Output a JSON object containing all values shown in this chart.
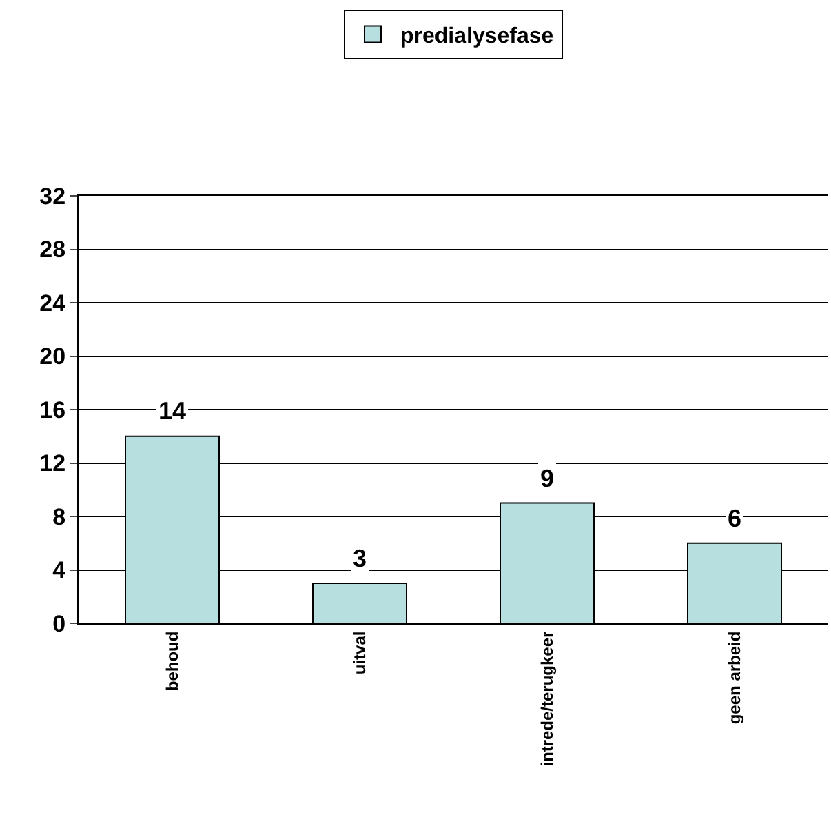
{
  "chart_data": {
    "type": "bar",
    "categories": [
      "behoud",
      "uitval",
      "intrede/terugkeer",
      "geen arbeid"
    ],
    "series": [
      {
        "name": "predialysefase",
        "color": "#b7dfe0",
        "values": [
          14,
          3,
          9,
          6
        ]
      }
    ],
    "ylim": [
      0,
      32
    ],
    "yticks": [
      0,
      4,
      8,
      12,
      16,
      20,
      24,
      28,
      32
    ],
    "grid": "y",
    "legend": "top",
    "data_labels": true
  }
}
